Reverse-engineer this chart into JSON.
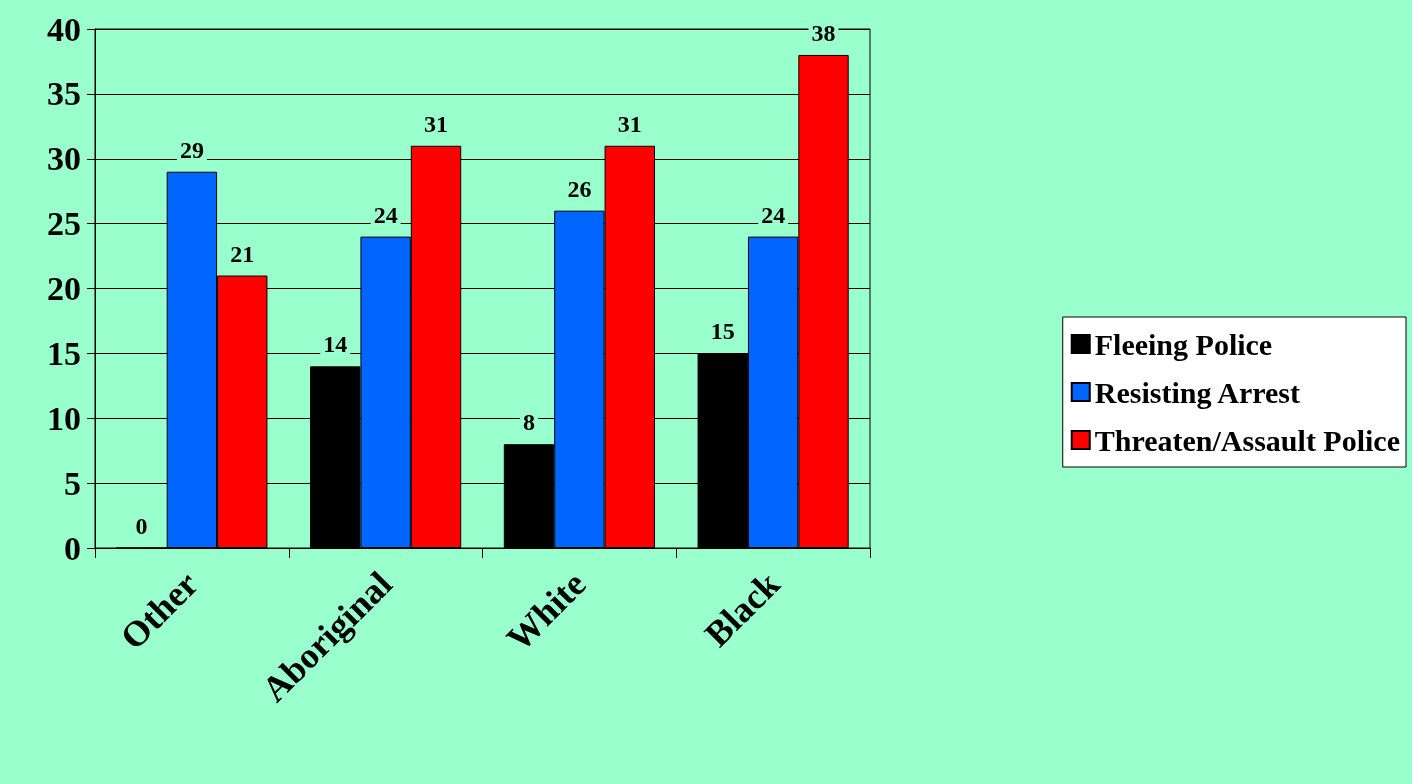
{
  "chart_data": {
    "type": "bar",
    "categories": [
      "Other",
      "Aboriginal",
      "White",
      "Black"
    ],
    "series": [
      {
        "name": "Fleeing Police",
        "color": "#000000",
        "values": [
          0,
          14,
          8,
          15
        ]
      },
      {
        "name": "Resisting Arrest",
        "color": "#0066ff",
        "values": [
          29,
          24,
          26,
          24
        ]
      },
      {
        "name": "Threaten/Assault Police",
        "color": "#ff0000",
        "values": [
          21,
          31,
          31,
          38
        ]
      }
    ],
    "ylim": [
      0,
      40
    ],
    "yticks": [
      0,
      5,
      10,
      15,
      20,
      25,
      30,
      35,
      40
    ],
    "grid": "y",
    "legend": "right",
    "data_labels": true
  }
}
